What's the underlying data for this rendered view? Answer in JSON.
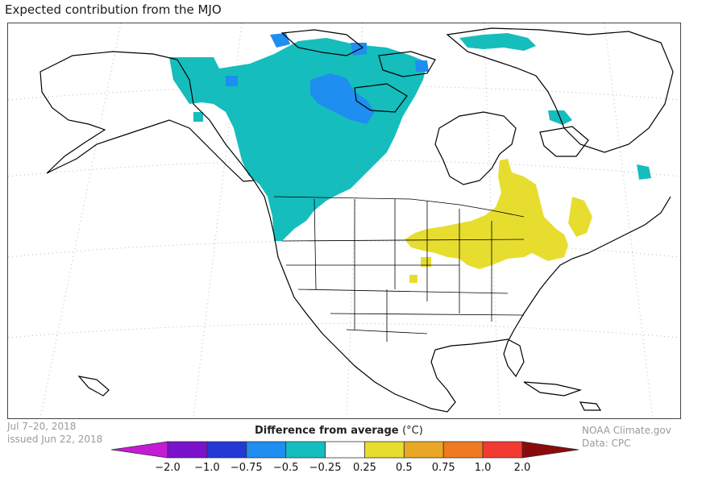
{
  "title": "Expected contribution from the MJO",
  "date_range": "Jul 7–20, 2018",
  "issued": "issued Jun 22, 2018",
  "source": {
    "line1": "NOAA Climate.gov",
    "line2": "Data: CPC"
  },
  "legend": {
    "title": "Difference from average",
    "unit": "(°C)",
    "ticks": [
      "−2.0",
      "−1.0",
      "−0.75",
      "−0.5",
      "−0.25",
      "0.25",
      "0.5",
      "0.75",
      "1.0",
      "2.0"
    ],
    "colors": [
      "#c51bd6",
      "#7a12cc",
      "#2338d6",
      "#1e8ef0",
      "#16bdbd",
      "#ffffff",
      "#e6dd2f",
      "#e8a825",
      "#ef7a1f",
      "#f23a33",
      "#8a0b0b"
    ]
  },
  "map": {
    "region": "North America",
    "anomaly_colors": {
      "cool_moderate": "#16bdbd",
      "cool_strong": "#1e8ef0",
      "warm": "#e6dd2f"
    }
  }
}
